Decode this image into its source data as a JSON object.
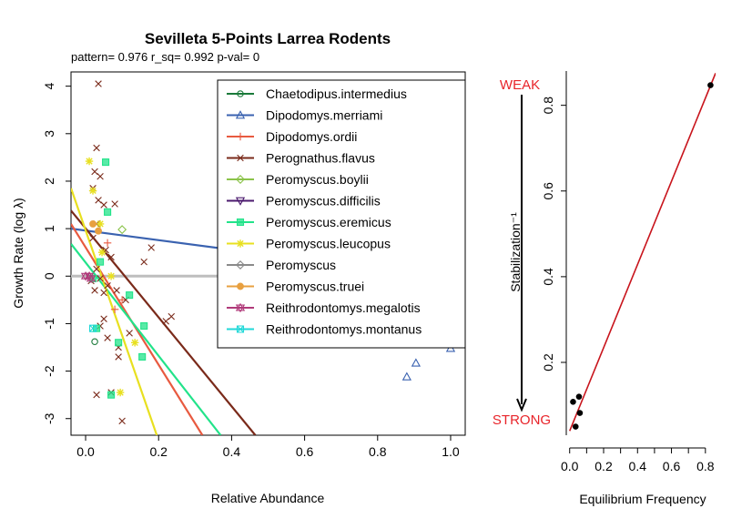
{
  "chart_data": [
    {
      "type": "scatter",
      "title": "Sevilleta 5-Points Larrea Rodents",
      "subtitle": "pattern= 0.976 r_sq= 0.992 p-val= 0",
      "xlabel": "Relative Abundance",
      "ylabel": "Growth Rate (log λ)",
      "xlim": [
        -0.04,
        1.04
      ],
      "ylim": [
        -3.35,
        4.3
      ],
      "xticks": [
        0,
        0.2,
        0.4,
        0.6,
        0.8,
        1.0
      ],
      "xtick_labels": [
        "0.0",
        "0.2",
        "0.4",
        "0.6",
        "0.8",
        "1.0"
      ],
      "yticks": [
        -3,
        -2,
        -1,
        0,
        1,
        2,
        3,
        4
      ],
      "ytick_labels": [
        "-3",
        "-2",
        "-1",
        "0",
        "1",
        "2",
        "3",
        "4"
      ],
      "grid": false,
      "reference_line": {
        "y": 0,
        "color": "#bebebe"
      },
      "legend_position": "top-right",
      "series": [
        {
          "name": "Chaetodipus.intermedius",
          "color": "#1a7a3a",
          "marker": "circle",
          "points": [
            [
              0.025,
              -1.38
            ]
          ],
          "fit": null
        },
        {
          "name": "Dipodomys.merriami",
          "color": "#3a62b0",
          "marker": "triangle-up",
          "points": [
            [
              0.88,
              -2.12
            ],
            [
              0.905,
              -1.83
            ],
            [
              1.0,
              -1.52
            ]
          ],
          "fit": {
            "x": [
              -0.04,
              1.0
            ],
            "y": [
              1.0,
              -0.05
            ]
          }
        },
        {
          "name": "Dipodomys.ordii",
          "color": "#e85a40",
          "marker": "plus",
          "points": [
            [
              0.06,
              0.7
            ],
            [
              0.08,
              -0.7
            ],
            [
              0.1,
              -0.5
            ]
          ],
          "fit": {
            "x": [
              -0.04,
              0.32
            ],
            "y": [
              1.1,
              -3.35
            ]
          }
        },
        {
          "name": "Perognathus.flavus",
          "color": "#7a2a1a",
          "marker": "cross",
          "points": [
            [
              0.035,
              4.05
            ],
            [
              0.03,
              2.7
            ],
            [
              0.025,
              2.2
            ],
            [
              0.04,
              2.1
            ],
            [
              0.02,
              1.85
            ],
            [
              0.035,
              1.6
            ],
            [
              0.05,
              1.5
            ],
            [
              0.08,
              1.52
            ],
            [
              0.03,
              1.1
            ],
            [
              0.02,
              0.8
            ],
            [
              0.055,
              0.55
            ],
            [
              0.07,
              0.4
            ],
            [
              0.03,
              0.15
            ],
            [
              0.015,
              -0.1
            ],
            [
              0.04,
              -0.05
            ],
            [
              0.06,
              -0.2
            ],
            [
              0.025,
              -0.3
            ],
            [
              0.05,
              -0.35
            ],
            [
              0.085,
              -0.3
            ],
            [
              0.11,
              -0.5
            ],
            [
              0.05,
              -0.9
            ],
            [
              0.04,
              -1.05
            ],
            [
              0.06,
              -1.3
            ],
            [
              0.09,
              -1.5
            ],
            [
              0.09,
              -1.7
            ],
            [
              0.12,
              -1.2
            ],
            [
              0.03,
              -2.5
            ],
            [
              0.07,
              -2.45
            ],
            [
              0.1,
              -3.05
            ],
            [
              0.16,
              0.3
            ],
            [
              0.18,
              0.6
            ],
            [
              0.22,
              -0.95
            ],
            [
              0.235,
              -0.85
            ]
          ],
          "fit": {
            "x": [
              -0.04,
              0.465
            ],
            "y": [
              1.38,
              -3.35
            ]
          }
        },
        {
          "name": "Peromyscus.boylii",
          "color": "#8bc34a",
          "marker": "diamond",
          "points": [
            [
              0.1,
              0.98
            ]
          ],
          "fit": null
        },
        {
          "name": "Peromyscus.difficilis",
          "color": "#4b1a6e",
          "marker": "triangle-down",
          "points": [],
          "fit": null
        },
        {
          "name": "Peromyscus.eremicus",
          "color": "#22e38a",
          "marker": "square",
          "points": [
            [
              0.055,
              2.4
            ],
            [
              0.06,
              1.35
            ],
            [
              0.04,
              0.3
            ],
            [
              0.02,
              -0.05
            ],
            [
              0.12,
              -0.4
            ],
            [
              0.03,
              -1.1
            ],
            [
              0.16,
              -1.05
            ],
            [
              0.09,
              -1.4
            ],
            [
              0.155,
              -1.7
            ],
            [
              0.07,
              -2.5
            ]
          ],
          "fit": {
            "x": [
              -0.04,
              0.37
            ],
            "y": [
              0.68,
              -3.35
            ]
          }
        },
        {
          "name": "Peromyscus.leucopus",
          "color": "#e8e020",
          "marker": "asterisk",
          "points": [
            [
              0.01,
              2.42
            ],
            [
              0.02,
              1.8
            ],
            [
              0.04,
              1.1
            ],
            [
              0.045,
              0.5
            ],
            [
              0.07,
              0.0
            ],
            [
              0.135,
              -1.4
            ],
            [
              0.095,
              -2.45
            ]
          ],
          "fit": {
            "x": [
              -0.04,
              0.195
            ],
            "y": [
              1.85,
              -3.35
            ]
          }
        },
        {
          "name": "Peromyscus",
          "color": "#8a8a8a",
          "marker": "diamond",
          "points": [],
          "fit": null
        },
        {
          "name": "Peromyscus.truei",
          "color": "#e8a040",
          "marker": "circle-filled",
          "points": [
            [
              0.02,
              1.1
            ],
            [
              0.035,
              0.95
            ]
          ],
          "fit": null
        },
        {
          "name": "Reithrodontomys.megalotis",
          "color": "#b03a7a",
          "marker": "triangle-star",
          "points": [
            [
              0.0,
              0.0
            ],
            [
              0.01,
              0.0
            ],
            [
              0.015,
              -0.05
            ]
          ],
          "fit": null
        },
        {
          "name": "Reithrodontomys.montanus",
          "color": "#20d8d8",
          "marker": "square-x",
          "points": [
            [
              0.02,
              -1.1
            ]
          ],
          "fit": null
        }
      ]
    },
    {
      "type": "scatter",
      "xlabel": "Equilibrium Frequency",
      "ylabel": "Stabilization⁻¹",
      "xlim": [
        -0.02,
        0.86
      ],
      "ylim": [
        0.03,
        0.88
      ],
      "xticks": [
        0,
        0.1,
        0.2,
        0.3,
        0.4,
        0.5,
        0.6,
        0.7,
        0.8
      ],
      "xtick_labels": [
        "0.0",
        "",
        "0.2",
        "",
        "0.4",
        "",
        "0.6",
        "",
        "0.8"
      ],
      "yticks": [
        0.2,
        0.4,
        0.6,
        0.8
      ],
      "ytick_labels": [
        "0.2",
        "0.4",
        "0.6",
        "0.8"
      ],
      "annotations": {
        "top": "WEAK",
        "bottom": "STRONG",
        "color": "#e8242a"
      },
      "points": [
        [
          0.83,
          0.847
        ],
        [
          0.02,
          0.108
        ],
        [
          0.055,
          0.12
        ],
        [
          0.06,
          0.082
        ],
        [
          0.035,
          0.05
        ]
      ],
      "fit": {
        "x": [
          0.0,
          0.86
        ],
        "y": [
          0.04,
          0.875
        ],
        "color": "#c8141c"
      },
      "grid": false
    }
  ]
}
